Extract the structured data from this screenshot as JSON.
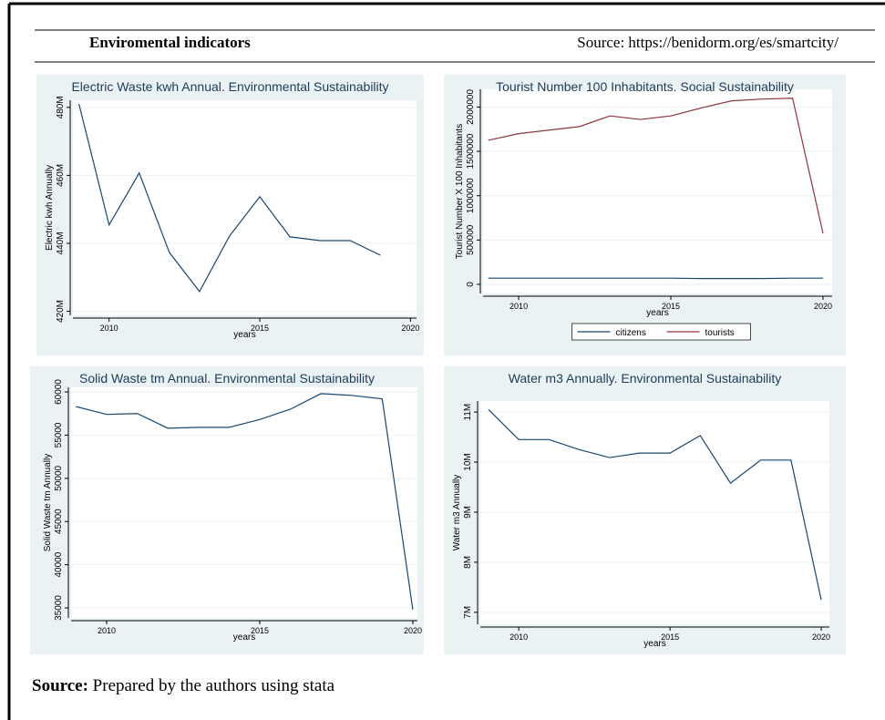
{
  "header": {
    "title": "Enviromental indicators",
    "source": "Source: https://benidorm.org/es/smartcity/"
  },
  "chart_data": [
    {
      "type": "line",
      "title": "Electric Waste kwh Annual. Environmental Sustainability",
      "x_label": "years",
      "y_label": "Electric kwh Annually",
      "x": [
        2009,
        2010,
        2011,
        2012,
        2013,
        2014,
        2015,
        2016,
        2017,
        2018,
        2019
      ],
      "series": [
        {
          "name": "Electric kwh Annually",
          "color": "#1a476f",
          "values": [
            481000000,
            445400000,
            460700000,
            437300000,
            425800000,
            442200000,
            453700000,
            441900000,
            440800000,
            440800000,
            436500000
          ]
        }
      ],
      "xlim": [
        2008.8,
        2020.2
      ],
      "ylim": [
        418800000,
        482100000
      ],
      "xticks": [
        2010,
        2015,
        2020
      ],
      "yticks": [
        {
          "value": 420000000,
          "label": "420M"
        },
        {
          "value": 440000000,
          "label": "440M"
        },
        {
          "value": 460000000,
          "label": "460M"
        },
        {
          "value": 480000000,
          "label": "480M"
        }
      ]
    },
    {
      "type": "line",
      "title": "Tourist Number 100 Inhabitants. Social Sustainability",
      "x_label": "years",
      "y_label": "Tourist Number X 100 Inhabitants",
      "x": [
        2009,
        2010,
        2011,
        2012,
        2013,
        2014,
        2015,
        2016,
        2017,
        2018,
        2019,
        2020
      ],
      "series": [
        {
          "name": "citizens",
          "color": "#1a476f",
          "values": [
            70000,
            70000,
            70000,
            70000,
            70000,
            70000,
            70000,
            65000,
            65000,
            65000,
            70000,
            70000
          ]
        },
        {
          "name": "tourists",
          "color": "#90353b",
          "values": [
            1625000,
            1700000,
            1740000,
            1780000,
            1900000,
            1860000,
            1900000,
            1990000,
            2070000,
            2090000,
            2100000,
            576000
          ]
        }
      ],
      "xlim": [
        2008.83,
        2020.3
      ],
      "ylim": [
        -103000,
        2200000
      ],
      "xticks": [
        2010,
        2015,
        2020
      ],
      "yticks": [
        0,
        500000,
        1000000,
        1500000,
        2000000
      ],
      "legend": "bottom"
    },
    {
      "type": "line",
      "title": "Solid Waste tm Annual. Environmental Sustainability",
      "x_label": "years",
      "y_label": "Solid Waste tm Annually",
      "x": [
        2009,
        2010,
        2011,
        2012,
        2013,
        2014,
        2015,
        2016,
        2017,
        2018,
        2019,
        2020
      ],
      "series": [
        {
          "name": "Solid Waste tm Annually",
          "color": "#1a476f",
          "values": [
            58300,
            57400,
            57500,
            55800,
            55900,
            55900,
            56800,
            58000,
            59800,
            59600,
            59200,
            34800
          ]
        }
      ],
      "xlim": [
        2008.84,
        2020.15
      ],
      "ylim": [
        33840,
        60530
      ],
      "xticks": [
        2010,
        2015,
        2020
      ],
      "yticks": [
        35000,
        40000,
        45000,
        50000,
        55000,
        60000
      ]
    },
    {
      "type": "line",
      "title": "Water m3 Annually. Environmental Sustainability",
      "x_label": "years",
      "y_label": "Water m3 Annually",
      "x": [
        2009,
        2010,
        2011,
        2012,
        2013,
        2014,
        2015,
        2016,
        2017,
        2018,
        2019,
        2020
      ],
      "series": [
        {
          "name": "Water m3 Annually",
          "color": "#1a476f",
          "values": [
            11050000,
            10450000,
            10450000,
            10250000,
            10090000,
            10180000,
            10180000,
            10530000,
            9580000,
            10040000,
            10040000,
            7250000
          ]
        }
      ],
      "xlim": [
        2008.73,
        2020.27
      ],
      "ylim": [
        6760000,
        11220000
      ],
      "xticks": [
        2010,
        2015,
        2020
      ],
      "yticks": [
        {
          "value": 7000000,
          "label": "7M"
        },
        {
          "value": 8000000,
          "label": "8M"
        },
        {
          "value": 9000000,
          "label": "9M"
        },
        {
          "value": 10000000,
          "label": "10M"
        },
        {
          "value": 11000000,
          "label": "11M"
        }
      ]
    }
  ],
  "footer": {
    "label": "Source:",
    "text": " Prepared by the authors using stata"
  }
}
